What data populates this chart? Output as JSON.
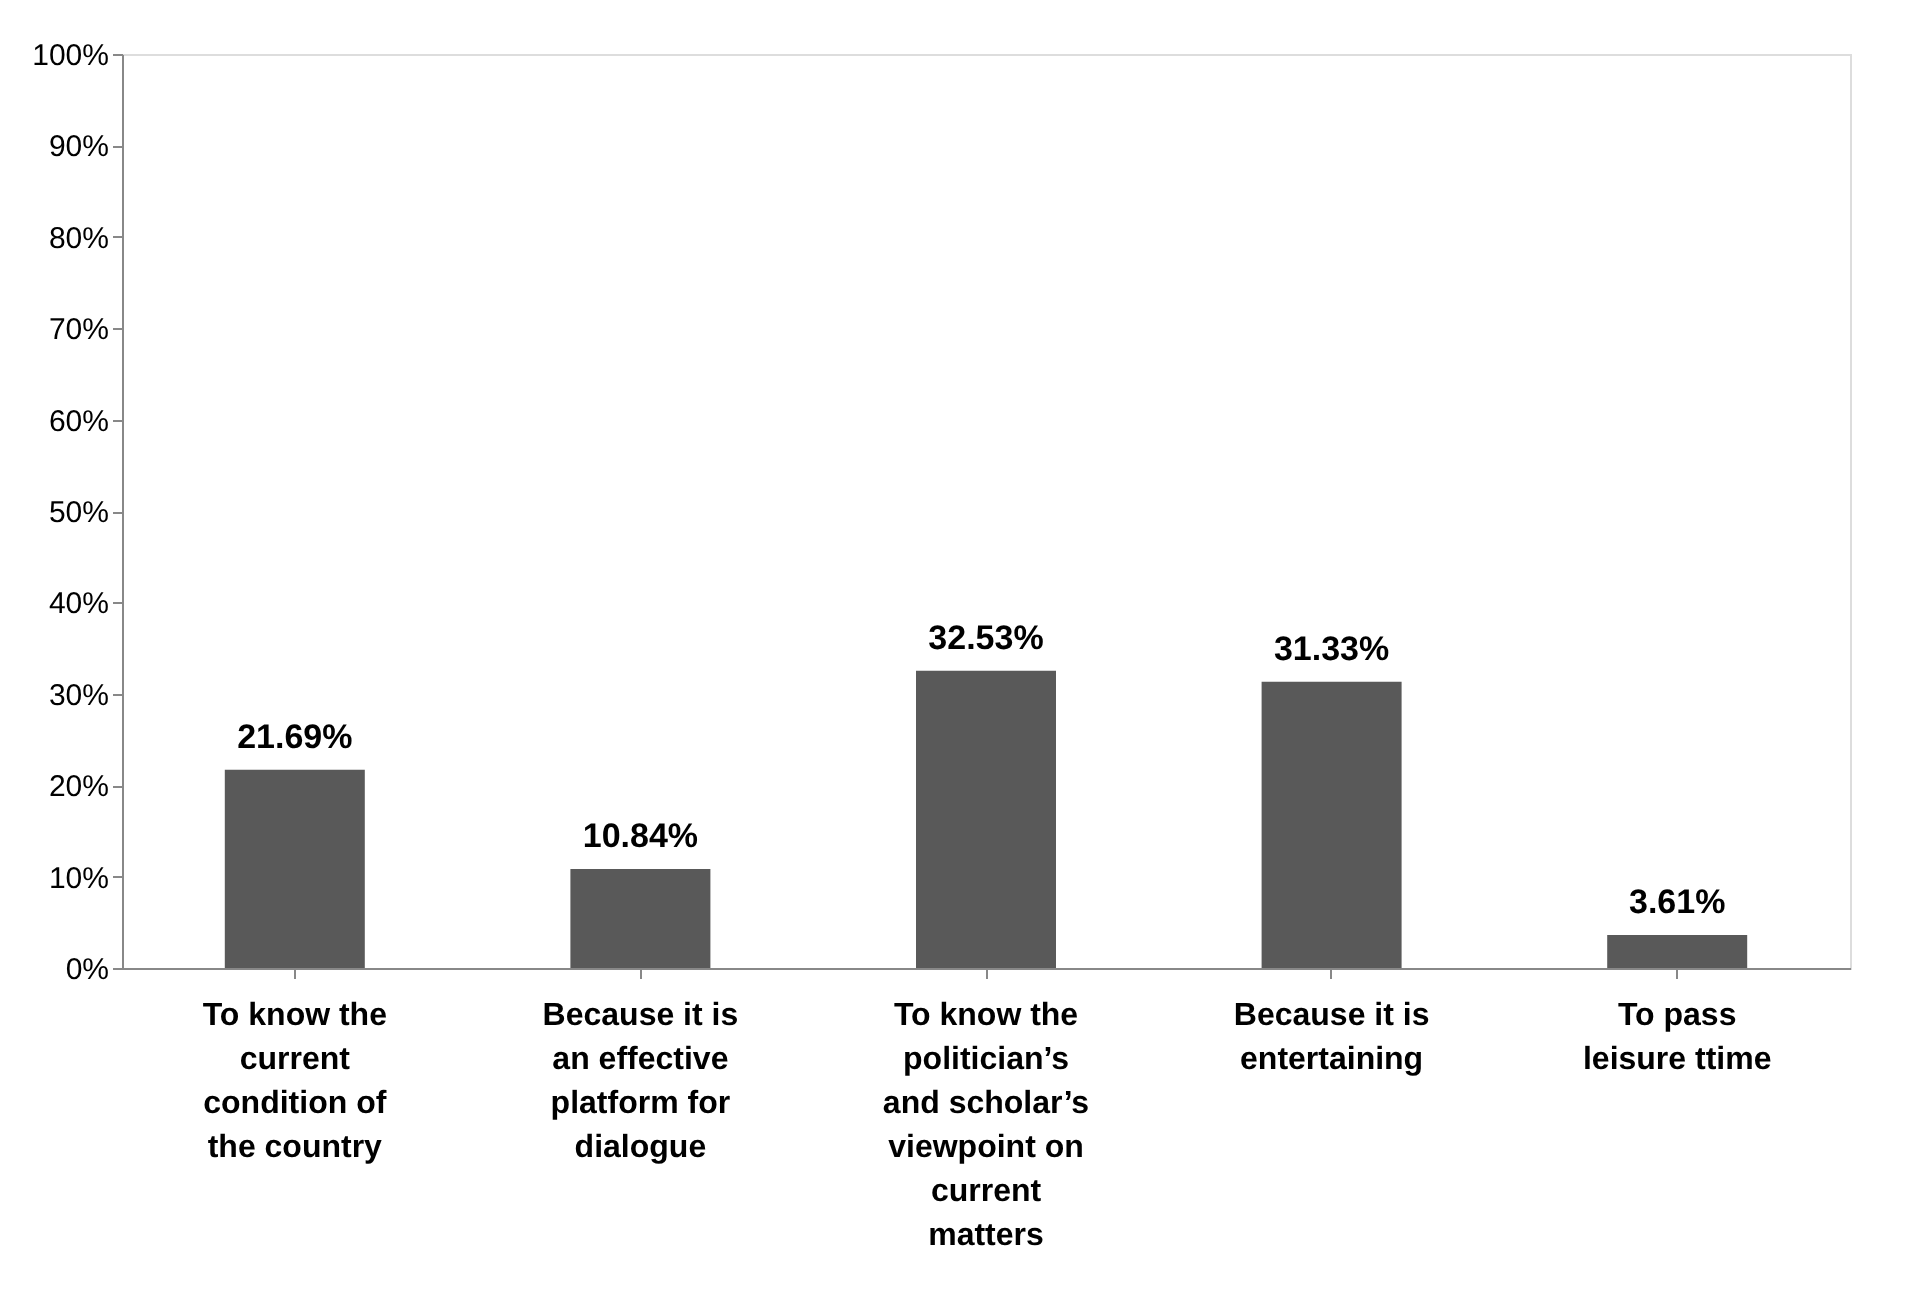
{
  "chart_data": {
    "type": "bar",
    "categories": [
      "To know the current condition of the country",
      "Because it is an effective platform for dialogue",
      "To know the politician’s and scholar’s viewpoint on current matters",
      "Because it is entertaining",
      "To pass leisure ttime"
    ],
    "values": [
      21.69,
      10.84,
      32.53,
      31.33,
      3.61
    ],
    "value_labels": [
      "21.69%",
      "10.84%",
      "32.53%",
      "31.33%",
      "3.61%"
    ],
    "color": "#595959",
    "ylim": [
      0,
      100
    ],
    "yticks": [
      {
        "value": 0,
        "label": "0%"
      },
      {
        "value": 10,
        "label": "10%"
      },
      {
        "value": 20,
        "label": "20%"
      },
      {
        "value": 30,
        "label": "30%"
      },
      {
        "value": 40,
        "label": "40%"
      },
      {
        "value": 50,
        "label": "50%"
      },
      {
        "value": 60,
        "label": "60%"
      },
      {
        "value": 70,
        "label": "70%"
      },
      {
        "value": 80,
        "label": "80%"
      },
      {
        "value": 90,
        "label": "90%"
      },
      {
        "value": 100,
        "label": "100%"
      }
    ],
    "grid": false
  }
}
